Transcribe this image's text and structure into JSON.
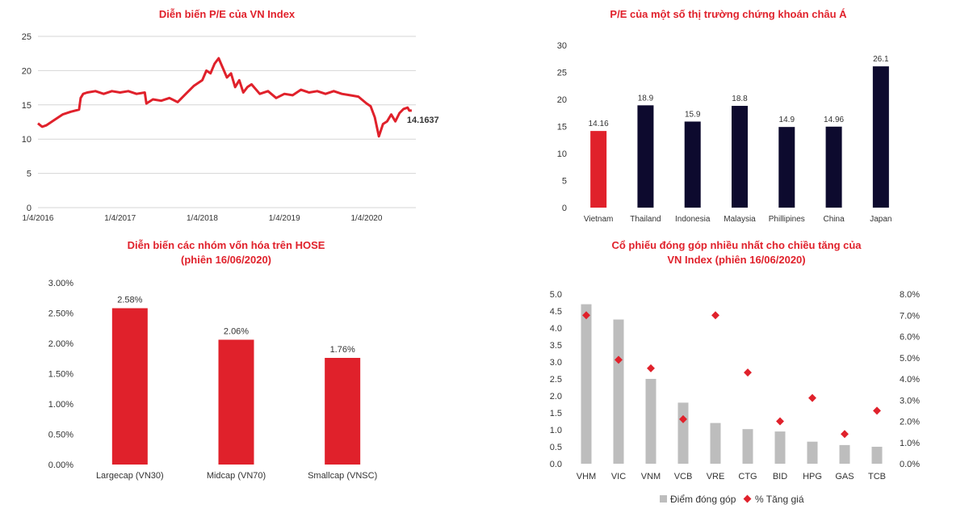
{
  "colors": {
    "title": "#e0212b",
    "red_bar": "#e0212b",
    "navy_bar": "#0d0a2e",
    "gray_bar": "#bdbdbd",
    "diamond": "#e0212b",
    "axis_text": "#333333",
    "grid": "#d6d6d6"
  },
  "chart_data": [
    {
      "id": "pe-vnindex",
      "type": "line",
      "title": "Diễn biến P/E của VN Index",
      "xlabel": "",
      "ylabel": "",
      "x_tick_labels": [
        "1/4/2016",
        "1/4/2017",
        "1/4/2018",
        "1/4/2019",
        "1/4/2020"
      ],
      "x_tick_positions": [
        0,
        1,
        2,
        3,
        4
      ],
      "x_range": [
        0,
        4.6
      ],
      "y_ticks": [
        0,
        5,
        10,
        15,
        20,
        25
      ],
      "ylim": [
        0,
        25
      ],
      "grid": true,
      "series": [
        {
          "name": "P/E VN Index",
          "x": [
            0,
            0.05,
            0.1,
            0.2,
            0.3,
            0.4,
            0.5,
            0.52,
            0.55,
            0.6,
            0.7,
            0.8,
            0.9,
            1.0,
            1.1,
            1.2,
            1.3,
            1.32,
            1.4,
            1.5,
            1.6,
            1.7,
            1.8,
            1.9,
            2.0,
            2.05,
            2.1,
            2.15,
            2.2,
            2.25,
            2.3,
            2.35,
            2.4,
            2.45,
            2.5,
            2.55,
            2.6,
            2.7,
            2.8,
            2.9,
            3.0,
            3.1,
            3.2,
            3.3,
            3.4,
            3.5,
            3.6,
            3.7,
            3.8,
            3.9,
            4.0,
            4.05,
            4.1,
            4.15,
            4.2,
            4.25,
            4.3,
            4.35,
            4.4,
            4.45,
            4.5,
            4.52,
            4.55
          ],
          "y": [
            12.3,
            11.8,
            12.0,
            12.8,
            13.6,
            14.0,
            14.3,
            16.0,
            16.6,
            16.8,
            17.0,
            16.6,
            17.0,
            16.8,
            17.0,
            16.6,
            16.8,
            15.2,
            15.8,
            15.6,
            16.0,
            15.4,
            16.6,
            17.8,
            18.6,
            20.0,
            19.6,
            21.0,
            21.8,
            20.4,
            19.0,
            19.6,
            17.6,
            18.6,
            16.8,
            17.6,
            18.0,
            16.6,
            17.0,
            16.0,
            16.6,
            16.4,
            17.2,
            16.8,
            17.0,
            16.6,
            17.0,
            16.6,
            16.4,
            16.2,
            15.2,
            14.8,
            13.2,
            10.4,
            12.2,
            12.6,
            13.6,
            12.6,
            13.8,
            14.4,
            14.6,
            14.1637,
            14.1637
          ]
        }
      ],
      "annotations": [
        {
          "text": "14.1637",
          "x": 4.55,
          "y": 14.1637
        }
      ]
    },
    {
      "id": "pe-asia",
      "type": "bar",
      "title": "P/E của một số thị trường chứng khoán châu Á",
      "categories": [
        "Vietnam",
        "Thailand",
        "Indonesia",
        "Malaysia",
        "Phillipines",
        "China",
        "Japan"
      ],
      "values": [
        14.16,
        18.9,
        15.9,
        18.8,
        14.9,
        14.96,
        26.1
      ],
      "data_labels": [
        "14.16",
        "18.9",
        "15.9",
        "18.8",
        "14.9",
        "14.96",
        "26.1"
      ],
      "highlight": [
        true,
        false,
        false,
        false,
        false,
        false,
        false
      ],
      "y_ticks": [
        0,
        5,
        10,
        15,
        20,
        25,
        30
      ],
      "ylim": [
        0,
        30
      ],
      "xlabel": "",
      "ylabel": "",
      "grid": false
    },
    {
      "id": "hose-groups",
      "type": "bar",
      "title_lines": [
        "Diễn biến các nhóm vốn hóa trên HOSE",
        "(phiên 16/06/2020)"
      ],
      "categories": [
        "Largecap (VN30)",
        "Midcap (VN70)",
        "Smallcap (VNSC)"
      ],
      "values": [
        2.58,
        2.06,
        1.76
      ],
      "data_labels": [
        "2.58%",
        "2.06%",
        "1.76%"
      ],
      "y_tick_values": [
        0,
        0.5,
        1.0,
        1.5,
        2.0,
        2.5,
        3.0
      ],
      "y_tick_labels": [
        "0.00%",
        "0.50%",
        "1.00%",
        "1.50%",
        "2.00%",
        "2.50%",
        "3.00%"
      ],
      "ylim": [
        0,
        3.0
      ],
      "xlabel": "",
      "ylabel": "",
      "grid": false
    },
    {
      "id": "top-contrib",
      "type": "bar",
      "title_lines": [
        "Cổ phiếu đóng góp nhiều nhất cho chiều tăng của",
        "VN Index (phiên 16/06/2020)"
      ],
      "categories": [
        "VHM",
        "VIC",
        "VNM",
        "VCB",
        "VRE",
        "CTG",
        "BID",
        "HPG",
        "GAS",
        "TCB"
      ],
      "series": [
        {
          "name": "Điểm đóng góp",
          "axis": "left",
          "kind": "bar",
          "values": [
            4.7,
            4.25,
            2.5,
            1.8,
            1.2,
            1.02,
            0.95,
            0.65,
            0.55,
            0.5
          ]
        },
        {
          "name": "% Tăng giá",
          "axis": "right",
          "kind": "scatter",
          "values": [
            7.0,
            4.9,
            4.5,
            2.1,
            7.0,
            4.3,
            2.0,
            3.1,
            1.4,
            2.5
          ]
        }
      ],
      "y_left_ticks": [
        0,
        0.5,
        1.0,
        1.5,
        2.0,
        2.5,
        3.0,
        3.5,
        4.0,
        4.5,
        5.0
      ],
      "y_left_tick_labels": [
        "0.0",
        "0.5",
        "1.0",
        "1.5",
        "2.0",
        "2.5",
        "3.0",
        "3.5",
        "4.0",
        "4.5",
        "5.0"
      ],
      "ylim_left": [
        0,
        5.0
      ],
      "y_right_ticks": [
        0,
        1,
        2,
        3,
        4,
        5,
        6,
        7,
        8
      ],
      "y_right_tick_labels": [
        "0.0%",
        "1.0%",
        "2.0%",
        "3.0%",
        "4.0%",
        "5.0%",
        "6.0%",
        "7.0%",
        "8.0%"
      ],
      "ylim_right": [
        0,
        8
      ],
      "legend": {
        "position": "bottom",
        "items": [
          "Điểm đóng góp",
          "% Tăng giá"
        ]
      },
      "xlabel": "",
      "grid": false
    }
  ]
}
